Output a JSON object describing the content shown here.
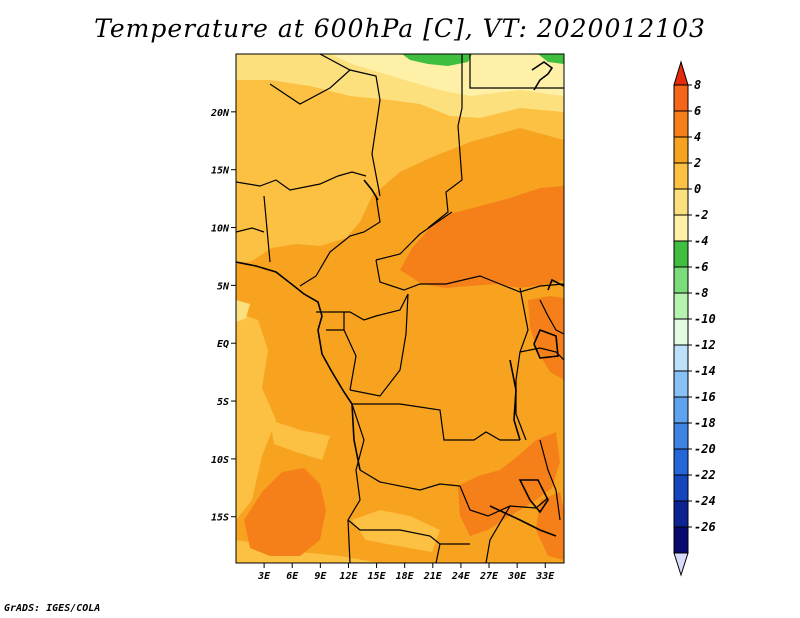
{
  "title": "Temperature at 600hPa [C], VT: 2020012103",
  "credit": "GrADS: IGES/COLA",
  "map": {
    "lat_range": [
      -19,
      25
    ],
    "lon_range": [
      0,
      35
    ],
    "lat_ticks": [
      {
        "value": 20,
        "label": "20N"
      },
      {
        "value": 15,
        "label": "15N"
      },
      {
        "value": 10,
        "label": "10N"
      },
      {
        "value": 5,
        "label": "5N"
      },
      {
        "value": 0,
        "label": "EQ"
      },
      {
        "value": -5,
        "label": "5S"
      },
      {
        "value": -10,
        "label": "10S"
      },
      {
        "value": -15,
        "label": "15S"
      }
    ],
    "lon_ticks": [
      {
        "value": 3,
        "label": "3E"
      },
      {
        "value": 6,
        "label": "6E"
      },
      {
        "value": 9,
        "label": "9E"
      },
      {
        "value": 12,
        "label": "12E"
      },
      {
        "value": 15,
        "label": "15E"
      },
      {
        "value": 18,
        "label": "18E"
      },
      {
        "value": 21,
        "label": "21E"
      },
      {
        "value": 24,
        "label": "24E"
      },
      {
        "value": 27,
        "label": "27E"
      },
      {
        "value": 30,
        "label": "30E"
      },
      {
        "value": 33,
        "label": "33E"
      }
    ],
    "fill_colors": {
      "base": "#f8a31f",
      "light": "#fcc043",
      "pale": "#fde07e",
      "paler": "#fff0a8",
      "warm": "#f5801a",
      "green": "#3fbe3f"
    }
  },
  "colorbar": {
    "labels": [
      "8",
      "6",
      "4",
      "2",
      "0",
      "-2",
      "-4",
      "-6",
      "-8",
      "-10",
      "-12",
      "-14",
      "-16",
      "-18",
      "-20",
      "-22",
      "-24",
      "-26"
    ],
    "colors": [
      "#e62a0a",
      "#f5651a",
      "#f5801a",
      "#f8a31f",
      "#fcc043",
      "#fde07e",
      "#fff0a8",
      "#3fbe3f",
      "#7bdc7b",
      "#b6f2b0",
      "#e2fce2",
      "#bde0fb",
      "#88c1f5",
      "#5fa3ee",
      "#3f84e4",
      "#2566d8",
      "#1546be",
      "#0c2492",
      "#0a0a6e",
      "#d8dcfa"
    ]
  }
}
